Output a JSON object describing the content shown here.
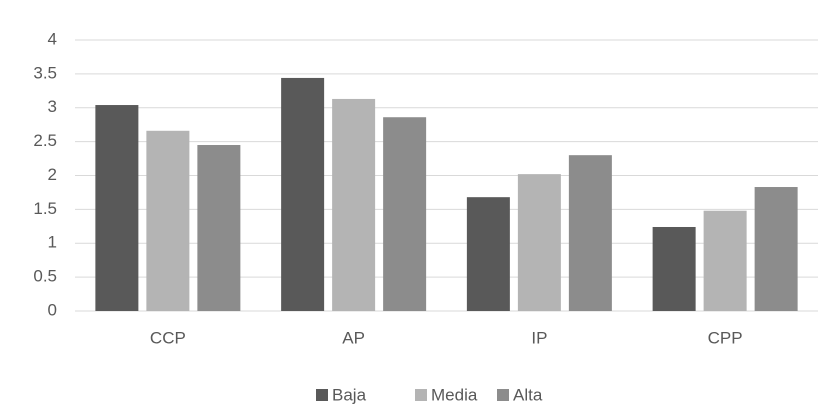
{
  "chart_data": {
    "type": "bar",
    "categories": [
      "CCP",
      "AP",
      "IP",
      "CPP"
    ],
    "series": [
      {
        "name": "Baja",
        "color": "#595959",
        "values": [
          3.04,
          3.44,
          1.68,
          1.24
        ]
      },
      {
        "name": "Media",
        "color": "#b4b4b4",
        "values": [
          2.66,
          3.13,
          2.02,
          1.48
        ]
      },
      {
        "name": "Alta",
        "color": "#8c8c8c",
        "values": [
          2.45,
          2.86,
          2.3,
          1.83
        ]
      }
    ],
    "ylim": [
      0,
      4
    ],
    "yticks": [
      0,
      0.5,
      1,
      1.5,
      2,
      2.5,
      3,
      3.5,
      4
    ],
    "grid": true,
    "legend": "bottom"
  }
}
